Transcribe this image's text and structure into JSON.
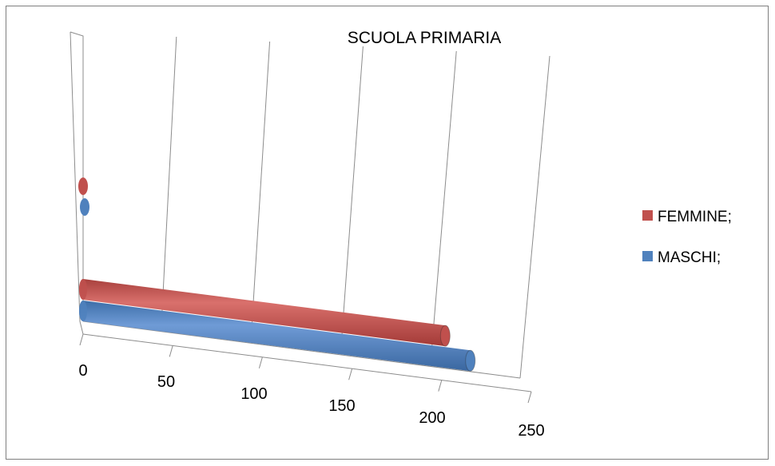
{
  "chart_data": {
    "type": "bar",
    "orientation": "horizontal",
    "style": "3d-cylinder",
    "title": "SCUOLA PRIMARIA",
    "x_ticks": [
      "0",
      "50",
      "100",
      "150",
      "200",
      "250"
    ],
    "xlim": [
      0,
      250
    ],
    "grid": true,
    "legend_position": "right",
    "series": [
      {
        "name": "FEMMINE;",
        "values": [
          202
        ],
        "color": "#c0504d"
      },
      {
        "name": "MASCHI;",
        "values": [
          216
        ],
        "color": "#4f81bd"
      }
    ]
  }
}
